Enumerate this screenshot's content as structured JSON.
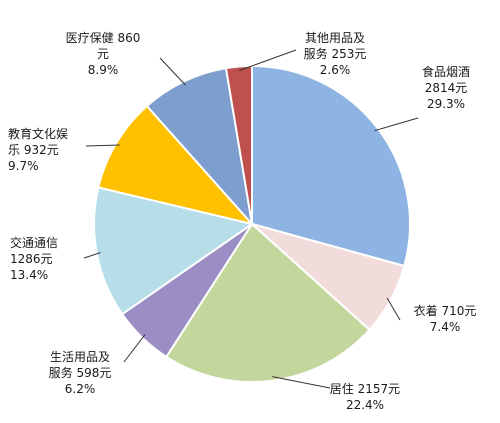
{
  "chart_data": {
    "type": "pie",
    "title": "",
    "slices": [
      {
        "name": "食品烟酒",
        "value": 2814,
        "value_label": "2814元",
        "percent": 29.3,
        "percent_label": "29.3%",
        "color": "#8db4e2"
      },
      {
        "name": "衣着",
        "value": 710,
        "value_label": "710元",
        "percent": 7.4,
        "percent_label": "7.4%",
        "color": "#f2dcdb"
      },
      {
        "name": "居住",
        "value": 2157,
        "value_label": "2157元",
        "percent": 22.4,
        "percent_label": "22.4%",
        "color": "#c3d69b"
      },
      {
        "name": "生活用品及服务",
        "value": 598,
        "value_label": "598元",
        "percent": 6.2,
        "percent_label": "6.2%",
        "color": "#9b8ec4"
      },
      {
        "name": "交通通信",
        "value": 1286,
        "value_label": "1286元",
        "percent": 13.4,
        "percent_label": "13.4%",
        "color": "#b7dee8"
      },
      {
        "name": "教育文化娱乐",
        "value": 932,
        "value_label": "932元",
        "percent": 9.7,
        "percent_label": "9.7%",
        "color": "#ffc000"
      },
      {
        "name": "医疗保健",
        "value": 860,
        "value_label": "860元",
        "percent": 8.9,
        "percent_label": "8.9%",
        "color": "#7f9ed0"
      },
      {
        "name": "其他用品及服务",
        "value": 253,
        "value_label": "253元",
        "percent": 2.6,
        "percent_label": "2.6%",
        "color": "#c0504d"
      }
    ]
  }
}
